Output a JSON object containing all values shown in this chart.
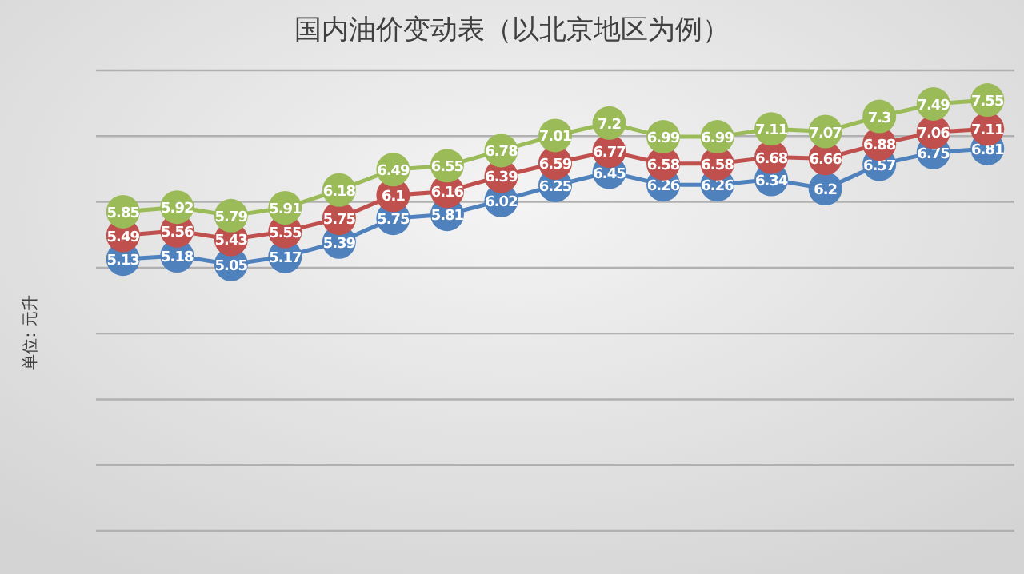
{
  "chart_data": {
    "type": "line",
    "title": "国内油价变动表（以北京地区为例）",
    "ylabel": "单位: 元升",
    "categories": [
      null,
      null,
      null,
      null,
      null,
      null,
      null,
      null,
      null,
      null,
      null,
      null,
      null,
      null,
      null,
      null,
      null
    ],
    "series": [
      {
        "color": "#4f81bd",
        "values": [
          5.13,
          5.18,
          5.05,
          5.17,
          5.39,
          5.75,
          5.81,
          6.02,
          6.25,
          6.45,
          6.26,
          6.26,
          6.34,
          6.2,
          6.57,
          6.75,
          6.81
        ]
      },
      {
        "color": "#c0504d",
        "values": [
          5.49,
          5.56,
          5.43,
          5.55,
          5.75,
          6.1,
          6.16,
          6.39,
          6.59,
          6.77,
          6.58,
          6.58,
          6.68,
          6.66,
          6.88,
          7.06,
          7.11
        ]
      },
      {
        "color": "#9bbb59",
        "values": [
          5.85,
          5.92,
          5.79,
          5.91,
          6.18,
          6.49,
          6.55,
          6.78,
          7.01,
          7.2,
          6.99,
          6.99,
          7.11,
          7.07,
          7.3,
          7.49,
          7.55
        ]
      }
    ],
    "ylim": [
      1,
      8
    ],
    "yticks": [
      {
        "value": 1,
        "label": null
      },
      {
        "value": 2,
        "label": null
      },
      {
        "value": 3,
        "label": null
      },
      {
        "value": 4,
        "label": null
      },
      {
        "value": 5,
        "label": null
      },
      {
        "value": 6,
        "label": null
      },
      {
        "value": 7,
        "label": null
      },
      {
        "value": 8,
        "label": null
      }
    ],
    "grid": "y",
    "marker": "circle",
    "line_style": "solid",
    "data_labels": true
  }
}
